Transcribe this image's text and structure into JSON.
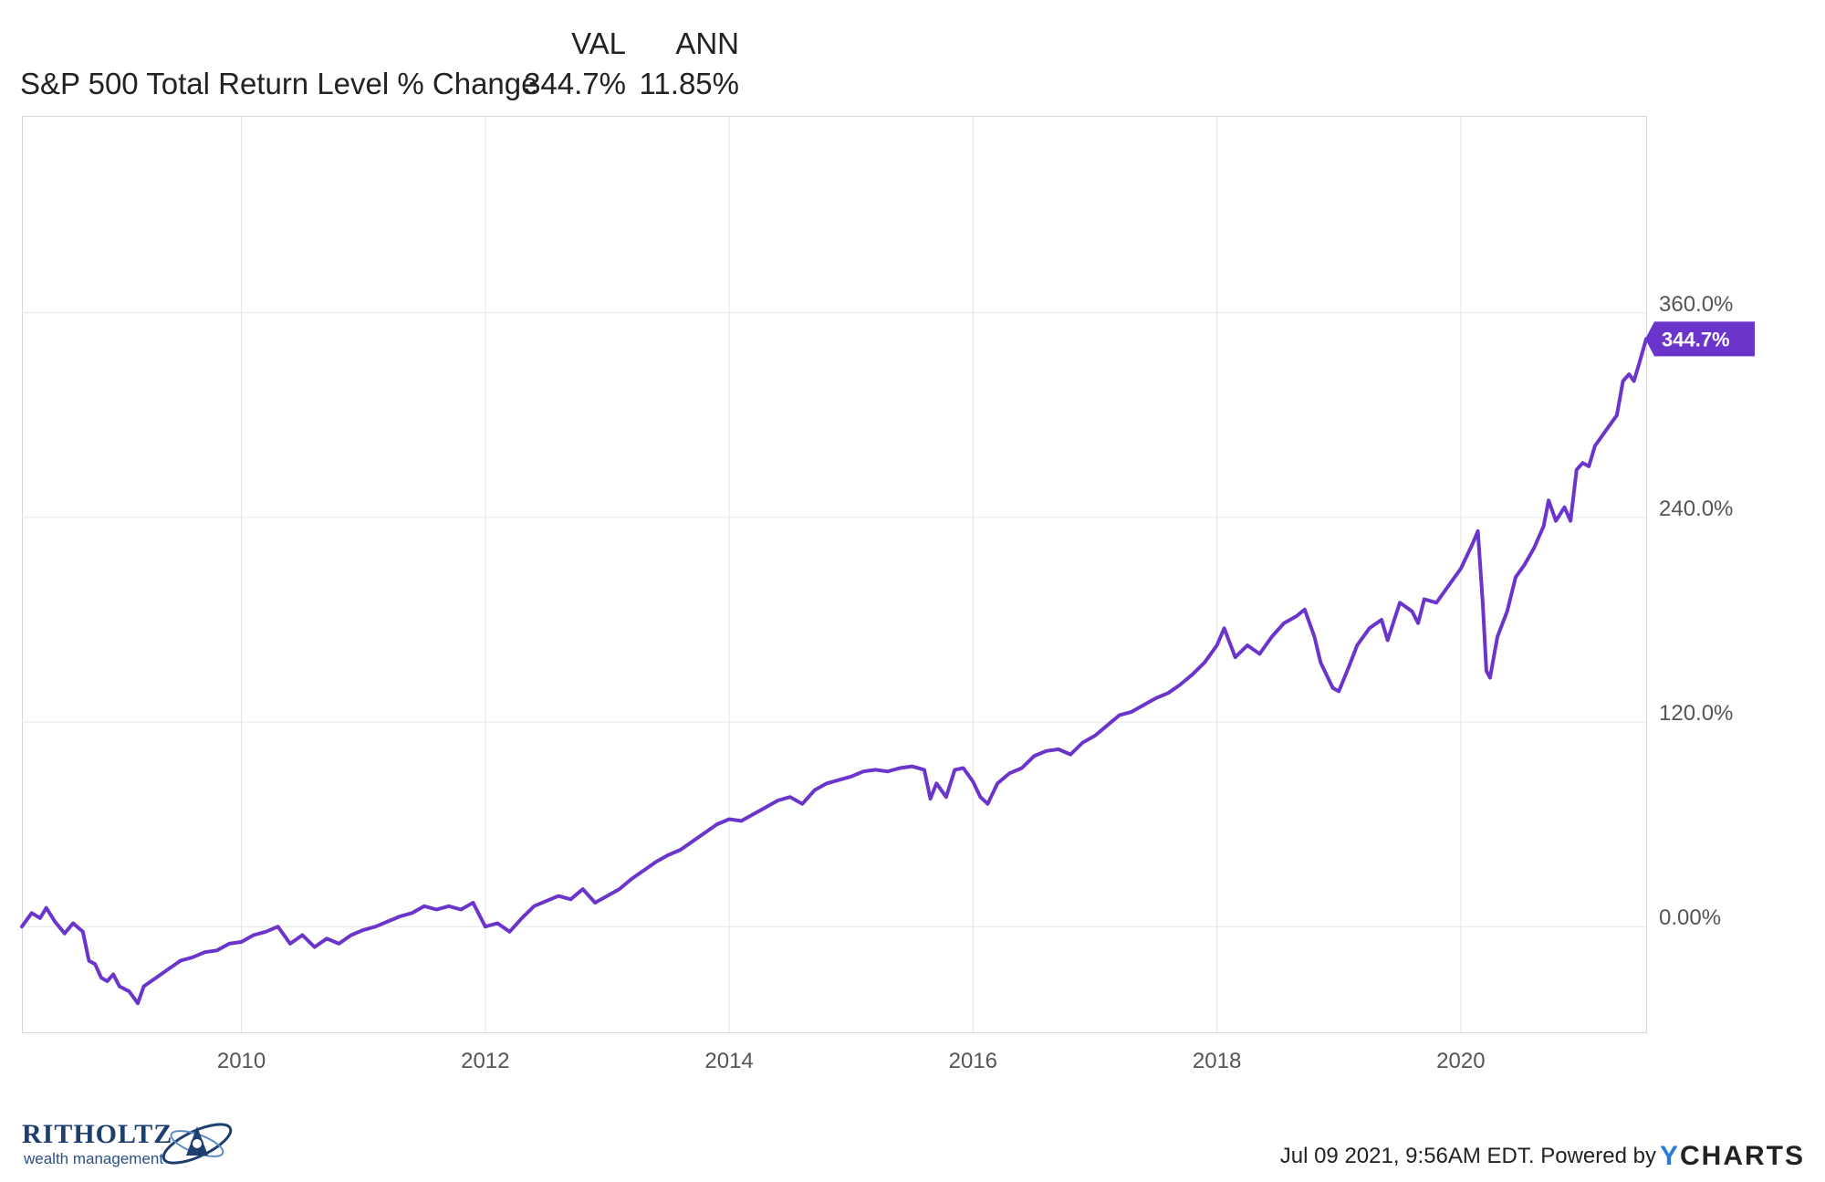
{
  "legend": {
    "col_val": "VAL",
    "col_ann": "ANN",
    "series_name": "S&P 500 Total Return Level % Change",
    "val": "344.7%",
    "ann": "11.85%"
  },
  "footer": {
    "logo_text": "RITHOLTZ",
    "logo_sub": "wealth management",
    "timestamp": "Jul 09 2021, 9:56AM EDT.",
    "powered": "Powered by",
    "brand_y": "Y",
    "brand_rest": "CHARTS"
  },
  "colors": {
    "line": "#6b35cc",
    "grid": "#e6e6e6",
    "axis_text": "#555555",
    "brand_blue": "#2b7bd8"
  },
  "chart_data": {
    "type": "line",
    "xlabel": "",
    "ylabel": "",
    "xlim": [
      2008.2,
      2021.52
    ],
    "ylim": [
      -62,
      475
    ],
    "x_ticks": [
      {
        "value": 2010,
        "label": "2010"
      },
      {
        "value": 2012,
        "label": "2012"
      },
      {
        "value": 2014,
        "label": "2014"
      },
      {
        "value": 2016,
        "label": "2016"
      },
      {
        "value": 2018,
        "label": "2018"
      },
      {
        "value": 2020,
        "label": "2020"
      }
    ],
    "y_ticks": [
      {
        "value": 0,
        "label": "0.00%"
      },
      {
        "value": 120,
        "label": "120.0%"
      },
      {
        "value": 240,
        "label": "240.0%"
      },
      {
        "value": 360,
        "label": "360.0%"
      }
    ],
    "last_value_label": "344.7%",
    "grid": true,
    "series": [
      {
        "name": "S&P 500 Total Return Level % Change",
        "points": [
          [
            2008.2,
            0
          ],
          [
            2008.28,
            8
          ],
          [
            2008.35,
            5
          ],
          [
            2008.4,
            11
          ],
          [
            2008.47,
            3
          ],
          [
            2008.55,
            -4
          ],
          [
            2008.62,
            2
          ],
          [
            2008.7,
            -3
          ],
          [
            2008.75,
            -20
          ],
          [
            2008.8,
            -22
          ],
          [
            2008.85,
            -30
          ],
          [
            2008.9,
            -32
          ],
          [
            2008.95,
            -28
          ],
          [
            2009.0,
            -35
          ],
          [
            2009.08,
            -38
          ],
          [
            2009.15,
            -45
          ],
          [
            2009.2,
            -35
          ],
          [
            2009.3,
            -30
          ],
          [
            2009.4,
            -25
          ],
          [
            2009.5,
            -20
          ],
          [
            2009.6,
            -18
          ],
          [
            2009.7,
            -15
          ],
          [
            2009.8,
            -14
          ],
          [
            2009.9,
            -10
          ],
          [
            2010.0,
            -9
          ],
          [
            2010.1,
            -5
          ],
          [
            2010.2,
            -3
          ],
          [
            2010.3,
            0
          ],
          [
            2010.4,
            -10
          ],
          [
            2010.5,
            -5
          ],
          [
            2010.6,
            -12
          ],
          [
            2010.7,
            -7
          ],
          [
            2010.8,
            -10
          ],
          [
            2010.9,
            -5
          ],
          [
            2011.0,
            -2
          ],
          [
            2011.1,
            0
          ],
          [
            2011.2,
            3
          ],
          [
            2011.3,
            6
          ],
          [
            2011.4,
            8
          ],
          [
            2011.5,
            12
          ],
          [
            2011.6,
            10
          ],
          [
            2011.7,
            12
          ],
          [
            2011.8,
            10
          ],
          [
            2011.9,
            14
          ],
          [
            2012.0,
            0
          ],
          [
            2012.1,
            2
          ],
          [
            2012.2,
            -3
          ],
          [
            2012.3,
            5
          ],
          [
            2012.4,
            12
          ],
          [
            2012.5,
            15
          ],
          [
            2012.6,
            18
          ],
          [
            2012.7,
            16
          ],
          [
            2012.8,
            22
          ],
          [
            2012.9,
            14
          ],
          [
            2013.0,
            18
          ],
          [
            2013.1,
            22
          ],
          [
            2013.2,
            28
          ],
          [
            2013.3,
            33
          ],
          [
            2013.4,
            38
          ],
          [
            2013.5,
            42
          ],
          [
            2013.6,
            45
          ],
          [
            2013.7,
            50
          ],
          [
            2013.8,
            55
          ],
          [
            2013.9,
            60
          ],
          [
            2014.0,
            63
          ],
          [
            2014.1,
            62
          ],
          [
            2014.2,
            66
          ],
          [
            2014.3,
            70
          ],
          [
            2014.4,
            74
          ],
          [
            2014.5,
            76
          ],
          [
            2014.6,
            72
          ],
          [
            2014.7,
            80
          ],
          [
            2014.8,
            84
          ],
          [
            2014.9,
            86
          ],
          [
            2015.0,
            88
          ],
          [
            2015.1,
            91
          ],
          [
            2015.2,
            92
          ],
          [
            2015.3,
            91
          ],
          [
            2015.4,
            93
          ],
          [
            2015.5,
            94
          ],
          [
            2015.6,
            92
          ],
          [
            2015.65,
            75
          ],
          [
            2015.7,
            84
          ],
          [
            2015.78,
            76
          ],
          [
            2015.85,
            92
          ],
          [
            2015.92,
            93
          ],
          [
            2016.0,
            85
          ],
          [
            2016.06,
            76
          ],
          [
            2016.12,
            72
          ],
          [
            2016.2,
            84
          ],
          [
            2016.3,
            90
          ],
          [
            2016.4,
            93
          ],
          [
            2016.5,
            100
          ],
          [
            2016.6,
            103
          ],
          [
            2016.7,
            104
          ],
          [
            2016.8,
            101
          ],
          [
            2016.9,
            108
          ],
          [
            2017.0,
            112
          ],
          [
            2017.1,
            118
          ],
          [
            2017.2,
            124
          ],
          [
            2017.3,
            126
          ],
          [
            2017.4,
            130
          ],
          [
            2017.5,
            134
          ],
          [
            2017.6,
            137
          ],
          [
            2017.7,
            142
          ],
          [
            2017.8,
            148
          ],
          [
            2017.9,
            155
          ],
          [
            2018.0,
            165
          ],
          [
            2018.06,
            175
          ],
          [
            2018.15,
            158
          ],
          [
            2018.25,
            165
          ],
          [
            2018.35,
            160
          ],
          [
            2018.45,
            170
          ],
          [
            2018.55,
            178
          ],
          [
            2018.65,
            182
          ],
          [
            2018.72,
            186
          ],
          [
            2018.8,
            170
          ],
          [
            2018.85,
            155
          ],
          [
            2018.95,
            140
          ],
          [
            2019.0,
            138
          ],
          [
            2019.08,
            152
          ],
          [
            2019.15,
            165
          ],
          [
            2019.25,
            175
          ],
          [
            2019.35,
            180
          ],
          [
            2019.4,
            168
          ],
          [
            2019.5,
            190
          ],
          [
            2019.6,
            185
          ],
          [
            2019.65,
            178
          ],
          [
            2019.7,
            192
          ],
          [
            2019.8,
            190
          ],
          [
            2019.9,
            200
          ],
          [
            2020.0,
            210
          ],
          [
            2020.1,
            225
          ],
          [
            2020.14,
            232
          ],
          [
            2020.18,
            190
          ],
          [
            2020.21,
            150
          ],
          [
            2020.24,
            146
          ],
          [
            2020.3,
            170
          ],
          [
            2020.38,
            185
          ],
          [
            2020.45,
            205
          ],
          [
            2020.52,
            212
          ],
          [
            2020.6,
            222
          ],
          [
            2020.68,
            235
          ],
          [
            2020.72,
            250
          ],
          [
            2020.78,
            238
          ],
          [
            2020.85,
            246
          ],
          [
            2020.9,
            238
          ],
          [
            2020.95,
            268
          ],
          [
            2021.0,
            272
          ],
          [
            2021.05,
            270
          ],
          [
            2021.1,
            282
          ],
          [
            2021.2,
            292
          ],
          [
            2021.28,
            300
          ],
          [
            2021.33,
            320
          ],
          [
            2021.38,
            324
          ],
          [
            2021.42,
            320
          ],
          [
            2021.47,
            332
          ],
          [
            2021.52,
            344.7
          ]
        ]
      }
    ]
  }
}
